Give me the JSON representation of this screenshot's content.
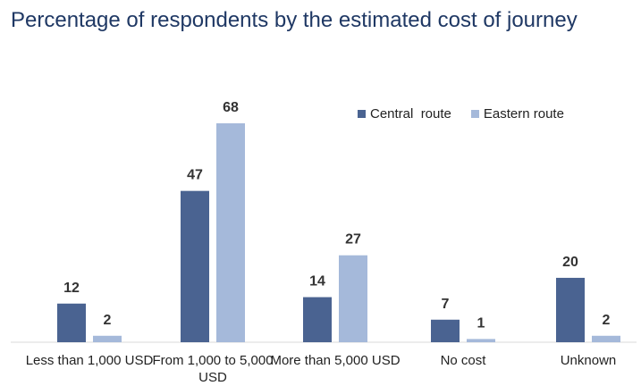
{
  "chart_data": {
    "type": "bar",
    "title": "Percentage of respondents by the estimated cost of journey",
    "categories": [
      "Less than 1,000 USD",
      "From 1,000 to 5,000 USD",
      "More than 5,000 USD",
      "No cost",
      "Unknown"
    ],
    "series": [
      {
        "name": "Central  route",
        "color": "#4a6391",
        "values": [
          12,
          47,
          14,
          7,
          20
        ]
      },
      {
        "name": "Eastern route",
        "color": "#a5b9da",
        "values": [
          2,
          68,
          27,
          1,
          2
        ]
      }
    ],
    "ylim": [
      0,
      68
    ],
    "grid": false,
    "legend": "top-right",
    "data_labels": true
  }
}
